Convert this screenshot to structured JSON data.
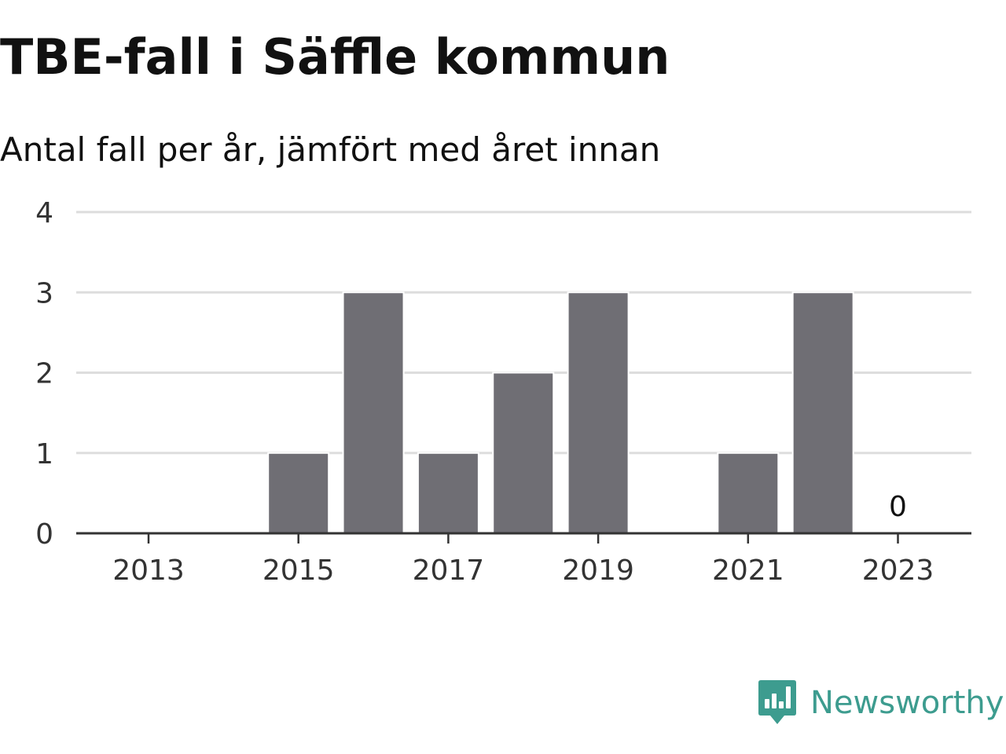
{
  "title": "TBE-fall i Säffle kommun",
  "subtitle": "Antal fall per år, jämfört med året innan",
  "brand": {
    "name": "Newsworthy",
    "color": "#3d9c8f",
    "icon": "bar-chart-speech-bubble-icon"
  },
  "colors": {
    "bar": "#6f6e74",
    "grid": "#dddddd",
    "axis": "#333333",
    "text": "#111111",
    "tick_text": "#333333"
  },
  "chart_data": {
    "type": "bar",
    "categories": [
      "2013",
      "2014",
      "2015",
      "2016",
      "2017",
      "2018",
      "2019",
      "2020",
      "2021",
      "2022",
      "2023"
    ],
    "values": [
      0,
      0,
      1,
      3,
      1,
      2,
      3,
      0,
      1,
      3,
      0
    ],
    "x_tick_labels": [
      "2013",
      "2015",
      "2017",
      "2019",
      "2021",
      "2023"
    ],
    "y_ticks": [
      0,
      1,
      2,
      3,
      4
    ],
    "ylim": [
      0,
      4
    ],
    "annotations": [
      {
        "category": "2023",
        "text": "0"
      }
    ],
    "title": "TBE-fall i Säffle kommun",
    "subtitle": "Antal fall per år, jämfört med året innan",
    "xlabel": "",
    "ylabel": "",
    "grid": true,
    "legend": "none"
  }
}
